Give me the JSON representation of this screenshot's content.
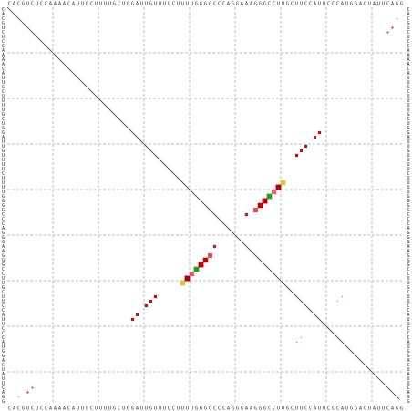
{
  "chart_data": {
    "type": "dotplot",
    "categories": [
      "C",
      "A",
      "C",
      "G",
      "U",
      "C",
      "U",
      "C",
      "C",
      "A",
      "A",
      "A",
      "A",
      "C",
      "A",
      "U",
      "U",
      "G",
      "C",
      "U",
      "U",
      "U",
      "U",
      "G",
      "C",
      "U",
      "G",
      "G",
      "A",
      "U",
      "U",
      "G",
      "U",
      "U",
      "U",
      "U",
      "C",
      "U",
      "U",
      "U",
      "U",
      "G",
      "G",
      "G",
      "G",
      "C",
      "C",
      "C",
      "A",
      "G",
      "G",
      "G",
      "A",
      "A",
      "G",
      "G",
      "G",
      "C",
      "C",
      "U",
      "U",
      "G",
      "C",
      "U",
      "U",
      "C",
      "C",
      "A",
      "U",
      "U",
      "C",
      "C",
      "C",
      "A",
      "U",
      "G",
      "G",
      "A",
      "C",
      "U",
      "A",
      "U",
      "U",
      "C",
      "A",
      "G",
      "G"
    ],
    "gridlines": [
      10,
      20,
      30,
      40,
      50,
      60,
      70,
      80
    ],
    "grid": true,
    "pairs": [
      {
        "i": 38,
        "j": 60,
        "probability": 0.9,
        "color": "#e8c040"
      },
      {
        "i": 39,
        "j": 59,
        "probability": 0.95,
        "color": "#b00000"
      },
      {
        "i": 40,
        "j": 58,
        "probability": 0.8,
        "color": "#e06070"
      },
      {
        "i": 41,
        "j": 57,
        "probability": 0.9,
        "color": "#20a020"
      },
      {
        "i": 42,
        "j": 56,
        "probability": 0.95,
        "color": "#b00000"
      },
      {
        "i": 43,
        "j": 55,
        "probability": 0.85,
        "color": "#c00000"
      },
      {
        "i": 44,
        "j": 54,
        "probability": 0.7,
        "color": "#e05050"
      },
      {
        "i": 45,
        "j": 52,
        "probability": 0.3,
        "color": "#c02020"
      },
      {
        "i": 27,
        "j": 68,
        "probability": 0.3,
        "color": "#c01010"
      },
      {
        "i": 28,
        "j": 67,
        "probability": 0.25,
        "color": "#c01010"
      },
      {
        "i": 30,
        "j": 65,
        "probability": 0.3,
        "color": "#c01010"
      },
      {
        "i": 31,
        "j": 64,
        "probability": 0.25,
        "color": "#c01010"
      },
      {
        "i": 32,
        "j": 63,
        "probability": 0.3,
        "color": "#c01010"
      },
      {
        "i": 4,
        "j": 84,
        "probability": 0.1,
        "color": "#c02020"
      },
      {
        "i": 5,
        "j": 83,
        "probability": 0.08,
        "color": "#c02020"
      },
      {
        "i": 2,
        "j": 85,
        "probability": 0.05,
        "color": "#e08080"
      },
      {
        "i": 64,
        "j": 72,
        "probability": 0.05,
        "color": "#e08080"
      },
      {
        "i": 63,
        "j": 73,
        "probability": 0.05,
        "color": "#e08080"
      }
    ]
  }
}
